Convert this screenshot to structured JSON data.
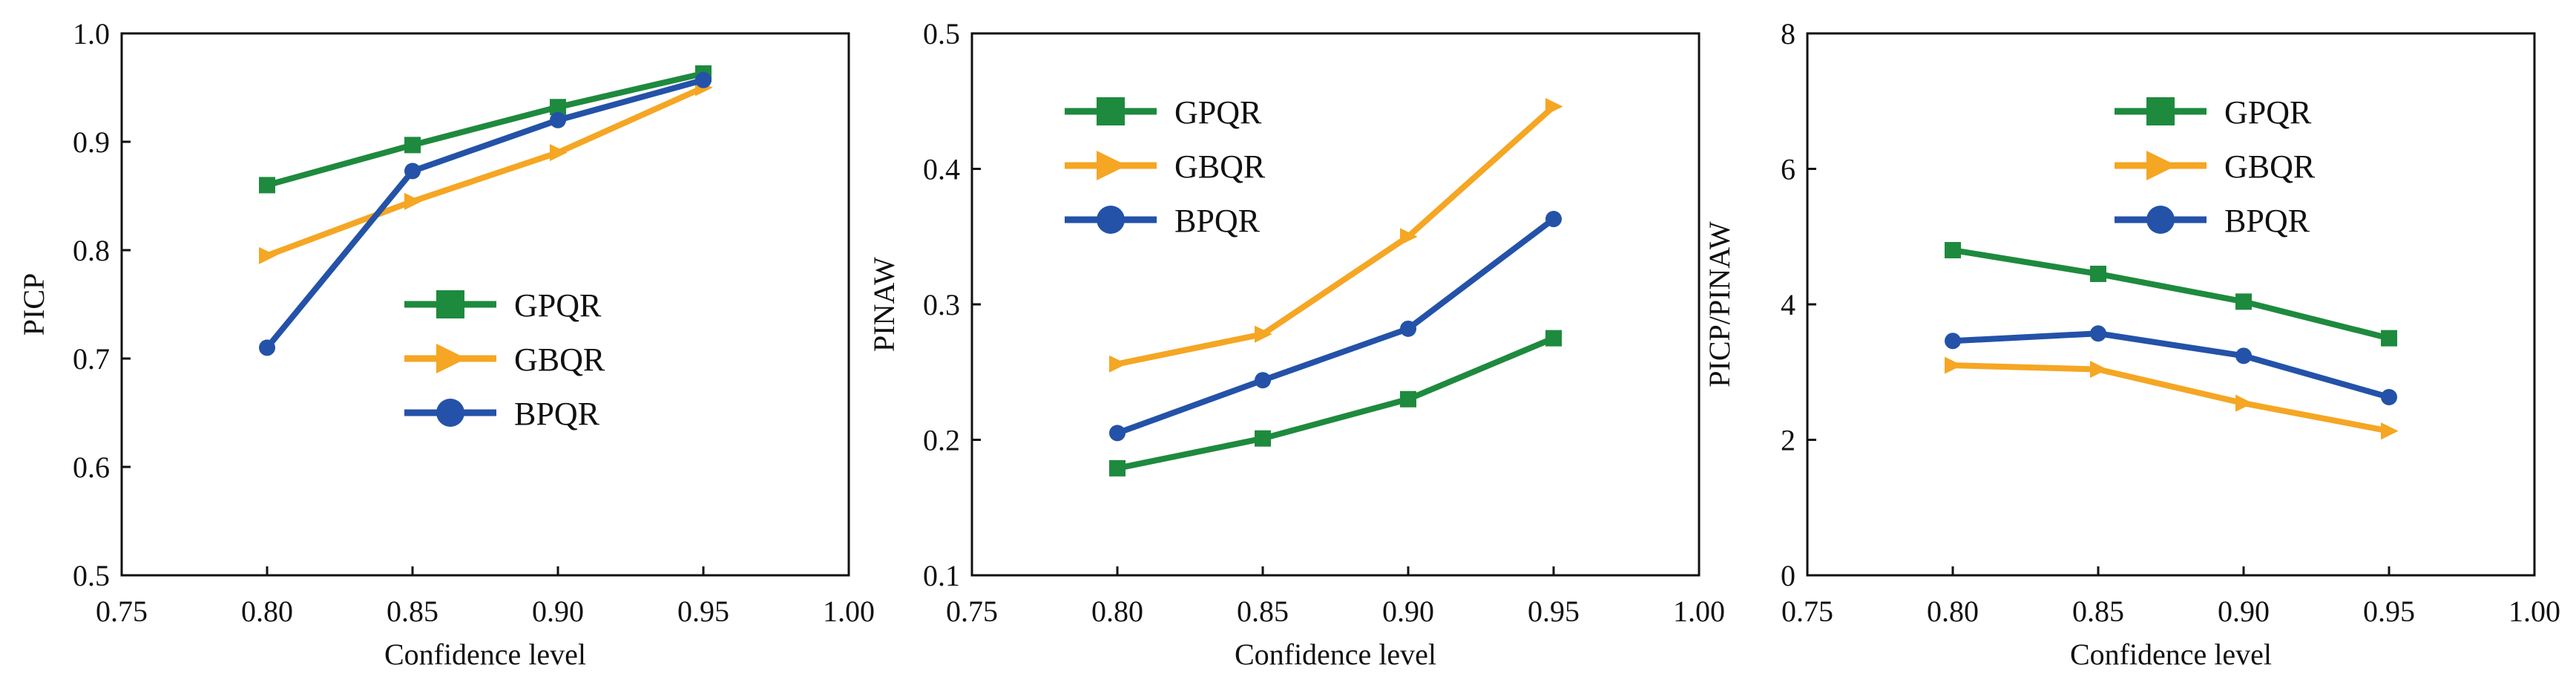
{
  "chart_data": [
    {
      "type": "line",
      "title": "",
      "xlabel": "Confidence level",
      "ylabel": "PICP",
      "xlim": [
        0.75,
        1.0
      ],
      "ylim": [
        0.5,
        1.0
      ],
      "x_ticks": [
        "0.75",
        "0.80",
        "0.85",
        "0.90",
        "0.95",
        "1.00"
      ],
      "y_ticks": [
        "0.5",
        "0.6",
        "0.7",
        "0.8",
        "0.9",
        "1.0"
      ],
      "x": [
        0.8,
        0.85,
        0.9,
        0.95
      ],
      "legend_position": "center-right",
      "series": [
        {
          "name": "GPQR",
          "color": "#1e8a3e",
          "marker": "square",
          "values": [
            0.86,
            0.897,
            0.932,
            0.963
          ]
        },
        {
          "name": "GBQR",
          "color": "#f5a623",
          "marker": "triangle-right",
          "values": [
            0.795,
            0.845,
            0.89,
            0.95
          ]
        },
        {
          "name": "BPQR",
          "color": "#2352a8",
          "marker": "circle",
          "values": [
            0.71,
            0.873,
            0.92,
            0.957
          ]
        }
      ]
    },
    {
      "type": "line",
      "title": "",
      "xlabel": "Confidence level",
      "ylabel": "PINAW",
      "xlim": [
        0.75,
        1.0
      ],
      "ylim": [
        0.1,
        0.5
      ],
      "x_ticks": [
        "0.75",
        "0.80",
        "0.85",
        "0.90",
        "0.95",
        "1.00"
      ],
      "y_ticks": [
        "0.1",
        "0.2",
        "0.3",
        "0.4",
        "0.5"
      ],
      "x": [
        0.8,
        0.85,
        0.9,
        0.95
      ],
      "legend_position": "top-left",
      "series": [
        {
          "name": "GPQR",
          "color": "#1e8a3e",
          "marker": "square",
          "values": [
            0.179,
            0.201,
            0.23,
            0.275
          ]
        },
        {
          "name": "GBQR",
          "color": "#f5a623",
          "marker": "triangle-right",
          "values": [
            0.256,
            0.278,
            0.35,
            0.446
          ]
        },
        {
          "name": "BPQR",
          "color": "#2352a8",
          "marker": "circle",
          "values": [
            0.205,
            0.244,
            0.282,
            0.363
          ]
        }
      ]
    },
    {
      "type": "line",
      "title": "",
      "xlabel": "Confidence level",
      "ylabel": "PICP/PINAW",
      "xlim": [
        0.75,
        1.0
      ],
      "ylim": [
        0,
        8
      ],
      "x_ticks": [
        "0.75",
        "0.80",
        "0.85",
        "0.90",
        "0.95",
        "1.00"
      ],
      "y_ticks": [
        "0",
        "2",
        "4",
        "6",
        "8"
      ],
      "x": [
        0.8,
        0.85,
        0.9,
        0.95
      ],
      "legend_position": "top-center",
      "series": [
        {
          "name": "GPQR",
          "color": "#1e8a3e",
          "marker": "square",
          "values": [
            4.8,
            4.45,
            4.04,
            3.5
          ]
        },
        {
          "name": "GBQR",
          "color": "#f5a623",
          "marker": "triangle-right",
          "values": [
            3.1,
            3.04,
            2.54,
            2.13
          ]
        },
        {
          "name": "BPQR",
          "color": "#2352a8",
          "marker": "circle",
          "values": [
            3.46,
            3.57,
            3.24,
            2.63
          ]
        }
      ]
    }
  ]
}
